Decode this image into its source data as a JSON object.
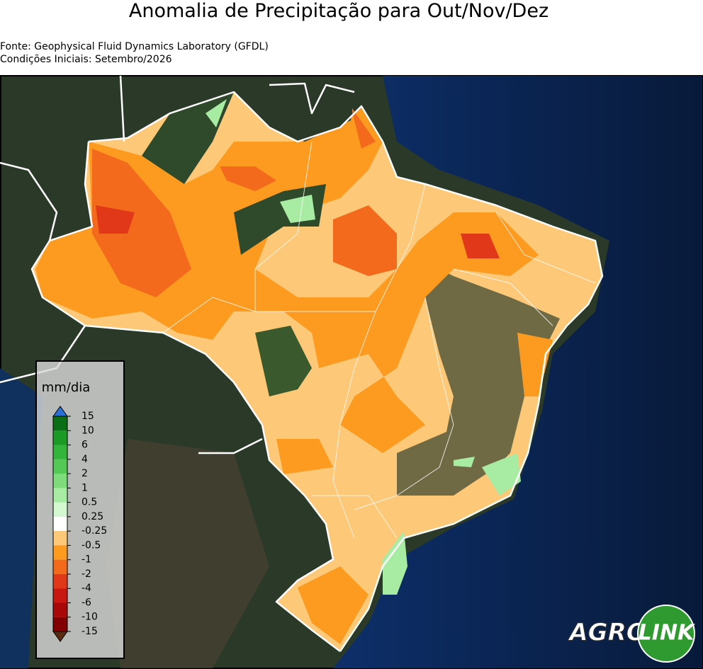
{
  "header": {
    "title": "Anomalia de Precipitação para Out/Nov/Dez",
    "source": "Fonte: Geophysical Fluid Dynamics Laboratory (GFDL)",
    "initial_conditions": "Condições Iniciais: Setembro/2026"
  },
  "colorbar": {
    "label": "mm/dia",
    "ticks": [
      15,
      10,
      6,
      4,
      2,
      1,
      0.5,
      0.25,
      -0.25,
      -0.5,
      -1,
      -2,
      -4,
      -6,
      -10,
      -15
    ],
    "colors": [
      "#0a6e14",
      "#1c9a26",
      "#33b43a",
      "#55c955",
      "#7edc7a",
      "#a8eca4",
      "#d4f8d0",
      "#ffffff",
      "#fdc877",
      "#fd9a20",
      "#f46a1c",
      "#e2381a",
      "#c81610",
      "#a80808",
      "#820000"
    ],
    "over_color": "#2c6fd6",
    "under_color": "#5a2a10"
  },
  "logo": {
    "part1": "AGRO",
    "part2": "LINK"
  }
}
